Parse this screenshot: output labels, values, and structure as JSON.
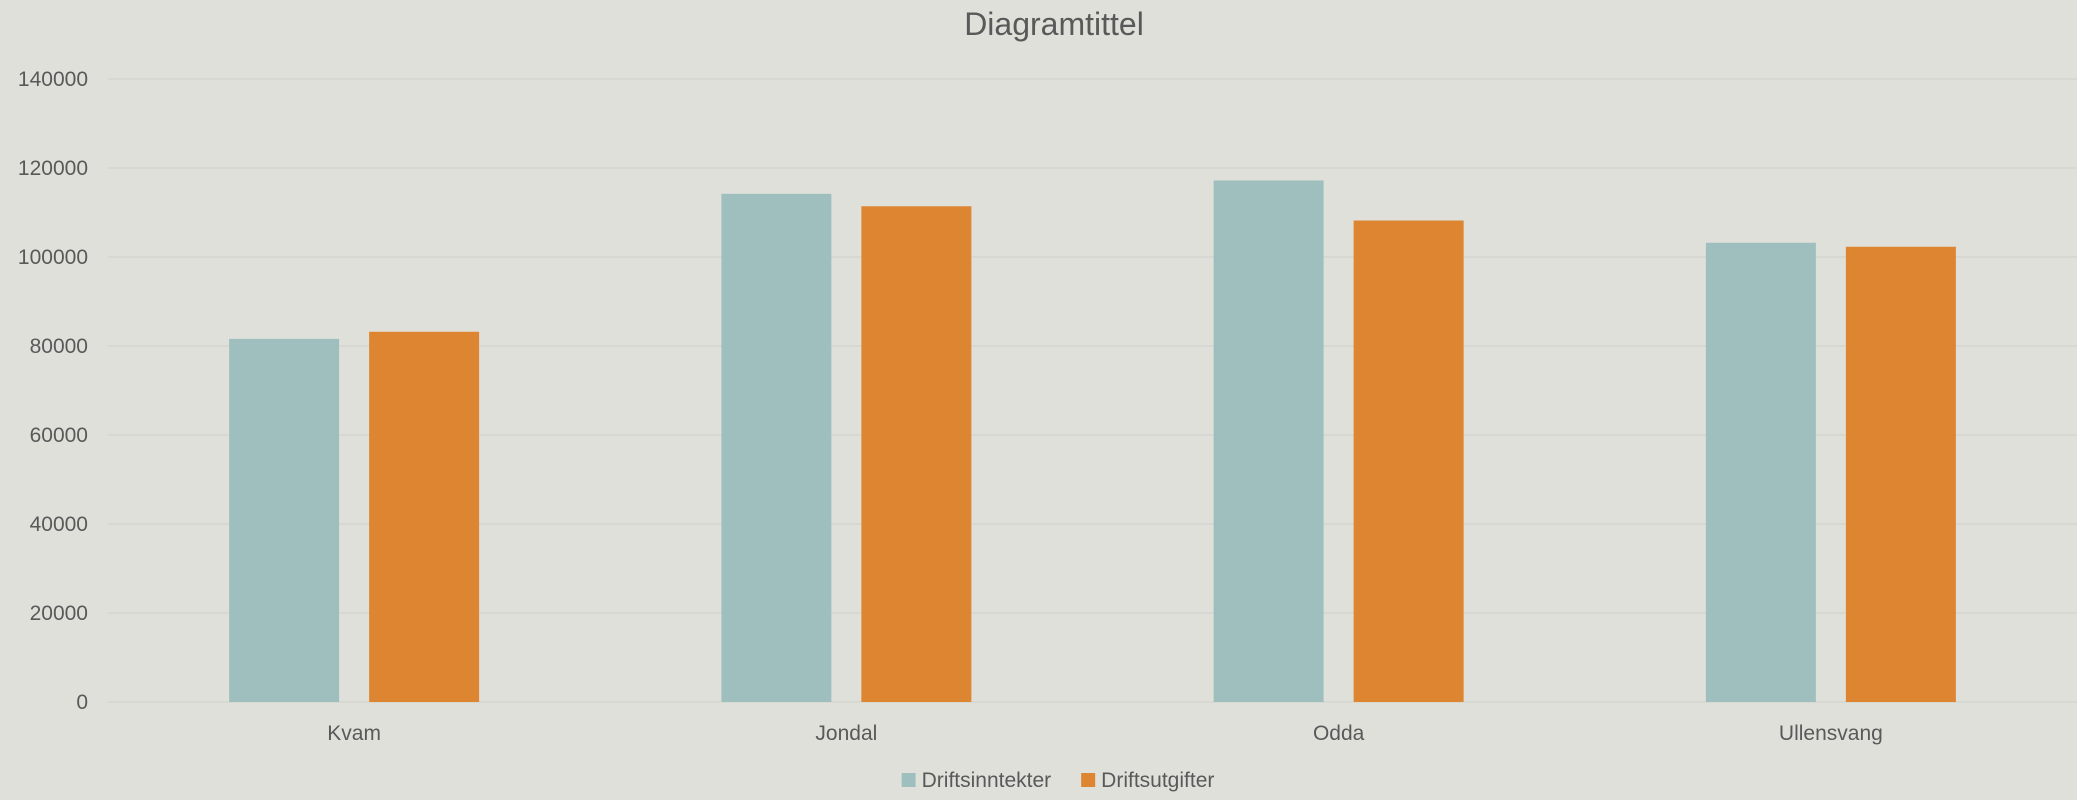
{
  "chart_data": {
    "type": "bar",
    "title": "Diagramtittel",
    "xlabel": "",
    "ylabel": "",
    "categories": [
      "Kvam",
      "Jondal",
      "Odda",
      "Ullensvang"
    ],
    "series": [
      {
        "name": "Driftsinntekter",
        "color": "#9fbfbe",
        "values": [
          81600,
          114200,
          117200,
          103200
        ]
      },
      {
        "name": "Driftsutgifter",
        "color": "#dd8531",
        "values": [
          83200,
          111400,
          108200,
          102300
        ]
      }
    ],
    "ylim": [
      0,
      140000
    ],
    "yticks": [
      0,
      20000,
      40000,
      60000,
      80000,
      100000,
      120000,
      140000
    ],
    "grid": true,
    "legend": "bottom"
  }
}
